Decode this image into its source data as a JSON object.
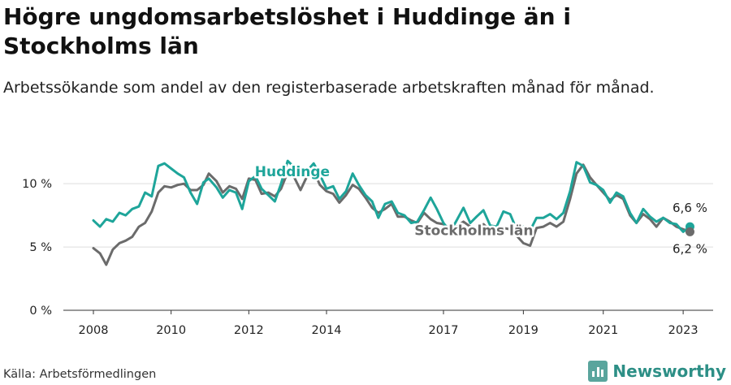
{
  "title": "Högre ungdomsarbetslöshet i Huddinge än i Stockholms län",
  "subtitle": "Arbetssökande som andel av den registerbaserade arbetskraften månad för månad.",
  "source": "Källa: Arbetsförmedlingen",
  "brand": "Newsworthy",
  "colors": {
    "huddinge": "#1ea59a",
    "stockholm": "#6b6b6b",
    "grid": "#dddddd",
    "axis": "#333333"
  },
  "chart_data": {
    "type": "line",
    "title": "Högre ungdomsarbetslöshet i Huddinge än i Stockholms län",
    "xlabel": "",
    "ylabel": "",
    "xlim": [
      2008.0,
      2023.75
    ],
    "ylim": [
      0,
      12
    ],
    "y_ticks": [
      0,
      5,
      10
    ],
    "y_tick_labels": [
      "0 %",
      "5 %",
      "10 %"
    ],
    "x_ticks": [
      2008,
      2010,
      2012,
      2014,
      2017,
      2019,
      2021,
      2023
    ],
    "x_tick_labels": [
      "2008",
      "2010",
      "2012",
      "2014",
      "2017",
      "2019",
      "2021",
      "2023"
    ],
    "x_axis_breaks": [
      "2014–2017 compressed"
    ],
    "grid": "horizontal",
    "series": [
      {
        "name": "Huddinge",
        "color": "#1ea59a",
        "end_label": "6,6 %",
        "points": [
          [
            2008.0,
            7.1
          ],
          [
            2008.17,
            6.6
          ],
          [
            2008.33,
            7.2
          ],
          [
            2008.5,
            7.0
          ],
          [
            2008.67,
            7.7
          ],
          [
            2008.83,
            7.5
          ],
          [
            2009.0,
            8.0
          ],
          [
            2009.17,
            8.2
          ],
          [
            2009.33,
            9.3
          ],
          [
            2009.5,
            9.0
          ],
          [
            2009.67,
            11.4
          ],
          [
            2009.83,
            11.6
          ],
          [
            2010.0,
            11.2
          ],
          [
            2010.17,
            10.8
          ],
          [
            2010.33,
            10.5
          ],
          [
            2010.5,
            9.3
          ],
          [
            2010.67,
            8.4
          ],
          [
            2010.83,
            10.1
          ],
          [
            2010.97,
            10.4
          ],
          [
            2011.17,
            9.7
          ],
          [
            2011.33,
            8.9
          ],
          [
            2011.5,
            9.5
          ],
          [
            2011.67,
            9.3
          ],
          [
            2011.83,
            8.0
          ],
          [
            2012.0,
            10.2
          ],
          [
            2012.17,
            10.6
          ],
          [
            2012.33,
            9.6
          ],
          [
            2012.5,
            9.1
          ],
          [
            2012.67,
            8.6
          ],
          [
            2012.83,
            10.0
          ],
          [
            2013.0,
            11.8
          ],
          [
            2013.17,
            11.3
          ],
          [
            2013.33,
            10.8
          ],
          [
            2013.5,
            11.0
          ],
          [
            2013.67,
            11.6
          ],
          [
            2013.83,
            10.7
          ],
          [
            2014.0,
            9.6
          ],
          [
            2014.17,
            9.8
          ],
          [
            2014.33,
            8.8
          ],
          [
            2014.5,
            9.4
          ],
          [
            2014.67,
            10.8
          ],
          [
            2014.83,
            9.9
          ],
          [
            2015.0,
            9.1
          ],
          [
            2015.17,
            8.6
          ],
          [
            2015.33,
            7.3
          ],
          [
            2015.5,
            8.4
          ],
          [
            2015.67,
            8.6
          ],
          [
            2015.83,
            7.7
          ],
          [
            2016.0,
            7.5
          ],
          [
            2016.17,
            6.9
          ],
          [
            2016.33,
            7.0
          ],
          [
            2016.5,
            7.9
          ],
          [
            2016.67,
            8.9
          ],
          [
            2016.83,
            8.0
          ],
          [
            2017.0,
            6.9
          ],
          [
            2017.17,
            6.2
          ],
          [
            2017.33,
            7.1
          ],
          [
            2017.5,
            8.1
          ],
          [
            2017.67,
            6.9
          ],
          [
            2017.83,
            7.4
          ],
          [
            2018.0,
            7.9
          ],
          [
            2018.17,
            6.7
          ],
          [
            2018.33,
            6.6
          ],
          [
            2018.5,
            7.8
          ],
          [
            2018.67,
            7.6
          ],
          [
            2018.83,
            6.4
          ],
          [
            2019.0,
            6.6
          ],
          [
            2019.17,
            6.3
          ],
          [
            2019.33,
            7.3
          ],
          [
            2019.5,
            7.3
          ],
          [
            2019.67,
            7.6
          ],
          [
            2019.83,
            7.2
          ],
          [
            2020.0,
            7.7
          ],
          [
            2020.17,
            9.4
          ],
          [
            2020.33,
            11.7
          ],
          [
            2020.5,
            11.4
          ],
          [
            2020.67,
            10.1
          ],
          [
            2020.83,
            9.9
          ],
          [
            2021.0,
            9.5
          ],
          [
            2021.17,
            8.5
          ],
          [
            2021.33,
            9.3
          ],
          [
            2021.5,
            9.0
          ],
          [
            2021.67,
            7.7
          ],
          [
            2021.83,
            6.9
          ],
          [
            2022.0,
            8.0
          ],
          [
            2022.17,
            7.4
          ],
          [
            2022.33,
            7.0
          ],
          [
            2022.5,
            7.3
          ],
          [
            2022.67,
            6.9
          ],
          [
            2022.83,
            6.8
          ],
          [
            2023.0,
            6.2
          ],
          [
            2023.17,
            6.6
          ]
        ]
      },
      {
        "name": "Stockholms län",
        "color": "#6b6b6b",
        "end_label": "6,2 %",
        "points": [
          [
            2008.0,
            4.9
          ],
          [
            2008.17,
            4.5
          ],
          [
            2008.33,
            3.6
          ],
          [
            2008.5,
            4.8
          ],
          [
            2008.67,
            5.3
          ],
          [
            2008.83,
            5.5
          ],
          [
            2009.0,
            5.8
          ],
          [
            2009.17,
            6.6
          ],
          [
            2009.33,
            6.9
          ],
          [
            2009.5,
            7.8
          ],
          [
            2009.67,
            9.3
          ],
          [
            2009.83,
            9.8
          ],
          [
            2010.0,
            9.7
          ],
          [
            2010.17,
            9.9
          ],
          [
            2010.33,
            10.0
          ],
          [
            2010.5,
            9.5
          ],
          [
            2010.67,
            9.5
          ],
          [
            2010.83,
            9.9
          ],
          [
            2010.97,
            10.8
          ],
          [
            2011.17,
            10.2
          ],
          [
            2011.33,
            9.3
          ],
          [
            2011.5,
            9.8
          ],
          [
            2011.67,
            9.6
          ],
          [
            2011.83,
            8.8
          ],
          [
            2012.0,
            10.4
          ],
          [
            2012.17,
            10.3
          ],
          [
            2012.33,
            9.2
          ],
          [
            2012.5,
            9.3
          ],
          [
            2012.67,
            9.0
          ],
          [
            2012.83,
            9.6
          ],
          [
            2013.0,
            10.9
          ],
          [
            2013.17,
            10.5
          ],
          [
            2013.33,
            9.5
          ],
          [
            2013.5,
            10.6
          ],
          [
            2013.67,
            11.0
          ],
          [
            2013.83,
            9.9
          ],
          [
            2014.0,
            9.4
          ],
          [
            2014.17,
            9.2
          ],
          [
            2014.33,
            8.5
          ],
          [
            2014.5,
            9.1
          ],
          [
            2014.67,
            9.9
          ],
          [
            2014.83,
            9.6
          ],
          [
            2015.0,
            8.9
          ],
          [
            2015.17,
            8.1
          ],
          [
            2015.33,
            7.7
          ],
          [
            2015.5,
            8.0
          ],
          [
            2015.67,
            8.4
          ],
          [
            2015.83,
            7.4
          ],
          [
            2016.0,
            7.4
          ],
          [
            2016.17,
            7.1
          ],
          [
            2016.33,
            6.9
          ],
          [
            2016.5,
            7.7
          ],
          [
            2016.67,
            7.2
          ],
          [
            2016.83,
            6.9
          ],
          [
            2017.0,
            6.8
          ],
          [
            2017.17,
            6.4
          ],
          [
            2017.33,
            6.6
          ],
          [
            2017.5,
            7.0
          ],
          [
            2017.67,
            6.6
          ],
          [
            2017.83,
            6.4
          ],
          [
            2018.0,
            6.8
          ],
          [
            2018.17,
            6.3
          ],
          [
            2018.33,
            6.1
          ],
          [
            2018.5,
            6.5
          ],
          [
            2018.67,
            6.4
          ],
          [
            2018.83,
            5.9
          ],
          [
            2019.0,
            5.3
          ],
          [
            2019.17,
            5.1
          ],
          [
            2019.33,
            6.5
          ],
          [
            2019.5,
            6.6
          ],
          [
            2019.67,
            6.9
          ],
          [
            2019.83,
            6.6
          ],
          [
            2020.0,
            7.0
          ],
          [
            2020.17,
            8.8
          ],
          [
            2020.33,
            10.8
          ],
          [
            2020.5,
            11.5
          ],
          [
            2020.67,
            10.5
          ],
          [
            2020.83,
            9.9
          ],
          [
            2021.0,
            9.3
          ],
          [
            2021.17,
            8.7
          ],
          [
            2021.33,
            9.1
          ],
          [
            2021.5,
            8.8
          ],
          [
            2021.67,
            7.5
          ],
          [
            2021.83,
            6.9
          ],
          [
            2022.0,
            7.6
          ],
          [
            2022.17,
            7.2
          ],
          [
            2022.33,
            6.6
          ],
          [
            2022.5,
            7.3
          ],
          [
            2022.67,
            7.0
          ],
          [
            2022.83,
            6.6
          ],
          [
            2023.0,
            6.4
          ],
          [
            2023.17,
            6.2
          ]
        ]
      }
    ]
  }
}
